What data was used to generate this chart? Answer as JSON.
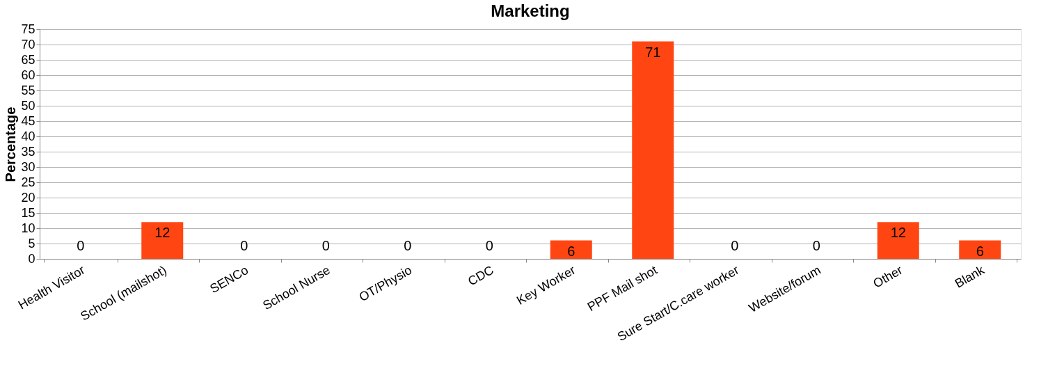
{
  "chart_data": {
    "type": "bar",
    "title": "Marketing",
    "ylabel": "Percentage",
    "categories": [
      "Health Visitor",
      "School (mailshot)",
      "SENCo",
      "School Nurse",
      "OT/Physio",
      "CDC",
      "Key Worker",
      "PPF Mail shot",
      "Sure Start/C.care worker",
      "Website/forum",
      "Other",
      "Blank"
    ],
    "values": [
      0,
      12,
      0,
      0,
      0,
      0,
      6,
      71,
      0,
      0,
      12,
      6
    ],
    "color": "#ff4612",
    "ylim": [
      0,
      75
    ],
    "yticks": [
      0,
      5,
      10,
      15,
      20,
      25,
      30,
      35,
      40,
      45,
      50,
      55,
      60,
      65,
      70,
      75
    ],
    "grid": "y",
    "data_labels": true
  }
}
